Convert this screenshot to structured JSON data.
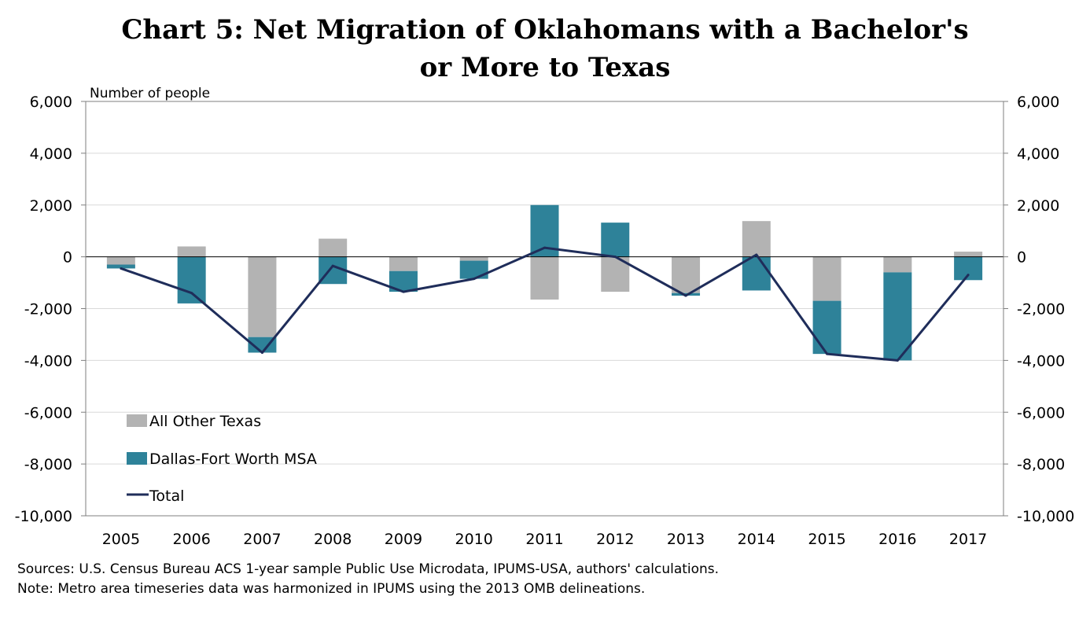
{
  "title_line1": "Chart 5: Net Migration of Oklahomans with a Bachelor's",
  "title_line2": "or More to Texas",
  "notes": {
    "sources": "Sources: U.S. Census Bureau ACS 1-year sample Public Use Microdata, IPUMS-USA, authors' calculations.",
    "note": "Note: Metro area timeseries data was harmonized in IPUMS using the 2013 OMB delineations."
  },
  "colors": {
    "other_texas": "#b3b3b3",
    "dfw": "#2e8299",
    "total": "#1f2d5a",
    "grid": "#d9d9d9",
    "axis": "#7f7f7f"
  },
  "chart_data": {
    "type": "bar",
    "stacked": true,
    "ylabel": "Number of people",
    "ylim": [
      -10000,
      6000
    ],
    "yticks": [
      6000,
      4000,
      2000,
      0,
      -2000,
      -4000,
      -6000,
      -8000,
      -10000
    ],
    "ytick_labels": [
      "6,000",
      "4,000",
      "2,000",
      "0",
      "-2,000",
      "-4,000",
      "-6,000",
      "-8,000",
      "-10,000"
    ],
    "categories": [
      "2005",
      "2006",
      "2007",
      "2008",
      "2009",
      "2010",
      "2011",
      "2012",
      "2013",
      "2014",
      "2015",
      "2016",
      "2017"
    ],
    "series": [
      {
        "name": "All Other Texas",
        "type": "bar",
        "values": [
          -300,
          400,
          -3100,
          700,
          -550,
          -150,
          -1650,
          -1350,
          -1400,
          1380,
          -1700,
          -600,
          200
        ]
      },
      {
        "name": "Dallas-Fort Worth MSA",
        "type": "bar",
        "values": [
          -150,
          -1800,
          -600,
          -1050,
          -800,
          -700,
          2000,
          1320,
          -100,
          -1300,
          -2050,
          -3400,
          -900
        ]
      },
      {
        "name": "Total",
        "type": "line",
        "values": [
          -450,
          -1400,
          -3700,
          -350,
          -1350,
          -850,
          350,
          0,
          -1500,
          80,
          -3750,
          -4000,
          -700
        ]
      }
    ],
    "legend": [
      "All Other Texas",
      "Dallas-Fort Worth MSA",
      "Total"
    ],
    "legend_position": "bottom-left (inside plot)",
    "grid": true,
    "secondary_y_axis": true
  }
}
